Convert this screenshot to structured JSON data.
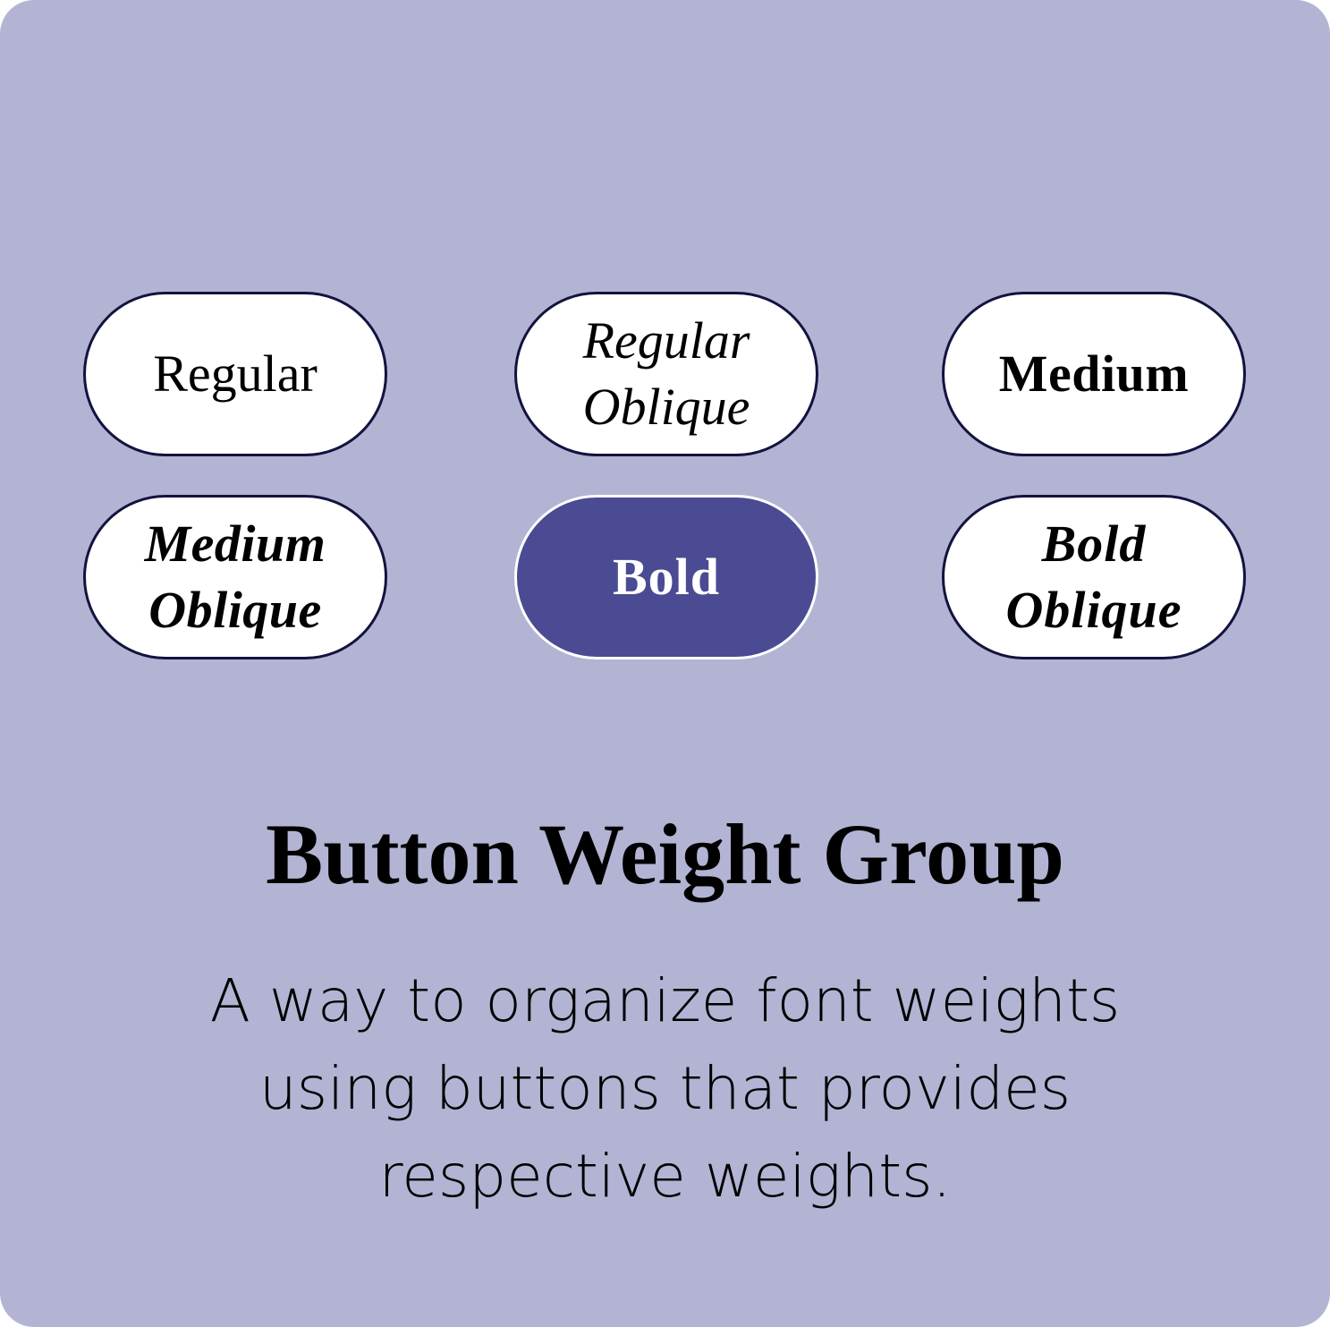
{
  "buttons": [
    {
      "lines": [
        "Regular"
      ],
      "weight": "regular",
      "italic": false,
      "selected": false
    },
    {
      "lines": [
        "Regular",
        "Oblique"
      ],
      "weight": "regular",
      "italic": true,
      "selected": false
    },
    {
      "lines": [
        "Medium"
      ],
      "weight": "medium",
      "italic": false,
      "selected": false
    },
    {
      "lines": [
        "Medium",
        "Oblique"
      ],
      "weight": "medium",
      "italic": true,
      "selected": false
    },
    {
      "lines": [
        "Bold"
      ],
      "weight": "bold",
      "italic": false,
      "selected": true
    },
    {
      "lines": [
        "Bold",
        "Oblique"
      ],
      "weight": "bold",
      "italic": true,
      "selected": false
    }
  ],
  "title": "Button Weight Group",
  "description": {
    "lines": [
      "A way to organize font weights",
      "using buttons that provides",
      "respective weights."
    ]
  },
  "colors": {
    "background": "#b3b4d4",
    "button_fill": "#ffffff",
    "button_border": "#14123e",
    "selected_fill": "#4b4b93",
    "selected_text": "#ffffff"
  }
}
